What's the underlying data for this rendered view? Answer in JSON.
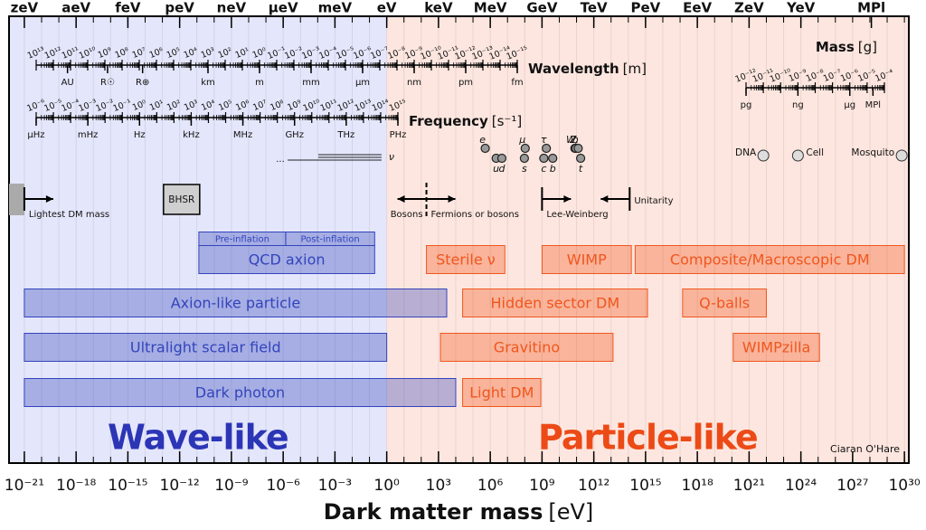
{
  "chart_data": {
    "type": "range",
    "xscale": "log",
    "xlim": [
      1.3e-22,
      1.8e+30
    ],
    "grid": true,
    "xlabel": "Dark matter mass",
    "xlabel_unit": "[eV]",
    "xticks": [
      {
        "value": 1e-21,
        "label": "10⁻²¹"
      },
      {
        "value": 1e-18,
        "label": "10⁻¹⁸"
      },
      {
        "value": 1e-15,
        "label": "10⁻¹⁵"
      },
      {
        "value": 1e-12,
        "label": "10⁻¹²"
      },
      {
        "value": 1e-09,
        "label": "10⁻⁹"
      },
      {
        "value": 1e-06,
        "label": "10⁻⁶"
      },
      {
        "value": 0.001,
        "label": "10⁻³"
      },
      {
        "value": 1,
        "label": "10⁰"
      },
      {
        "value": 1000.0,
        "label": "10³"
      },
      {
        "value": 1000000.0,
        "label": "10⁶"
      },
      {
        "value": 1000000000.0,
        "label": "10⁹"
      },
      {
        "value": 1000000000000.0,
        "label": "10¹²"
      },
      {
        "value": 1000000000000000.0,
        "label": "10¹⁵"
      },
      {
        "value": 1e+18,
        "label": "10¹⁸"
      },
      {
        "value": 1e+21,
        "label": "10²¹"
      },
      {
        "value": 1e+24,
        "label": "10²⁴"
      },
      {
        "value": 1e+27,
        "label": "10²⁷"
      },
      {
        "value": 1e+30,
        "label": "10³⁰"
      }
    ],
    "xticks_minor": [
      1e-21,
      1e-20,
      1e-19,
      1e-18,
      1e-17,
      1e-16,
      1e-15,
      1e-14,
      1e-13,
      1e-12,
      1e-11,
      1e-10,
      1e-09,
      1e-08,
      1e-07,
      1e-06,
      1e-05,
      0.0001,
      0.001,
      0.01,
      0.1,
      1,
      10.0,
      100.0,
      1000.0,
      10000.0,
      100000.0,
      1000000.0,
      10000000.0,
      100000000.0,
      1000000000.0,
      10000000000.0,
      100000000000.0,
      1000000000000.0,
      10000000000000.0,
      100000000000000.0,
      1000000000000000.0,
      1e+16,
      1e+17,
      1e+18,
      1e+19,
      1e+20,
      1e+21,
      1e+22,
      1e+23,
      1e+24,
      1e+25,
      1e+26,
      1e+27,
      1e+28,
      1e+29,
      1e+30
    ],
    "x2ticks": [
      {
        "value": 1e-21,
        "label": "zeV"
      },
      {
        "value": 1e-18,
        "label": "aeV"
      },
      {
        "value": 1e-15,
        "label": "feV"
      },
      {
        "value": 1e-12,
        "label": "peV"
      },
      {
        "value": 1e-09,
        "label": "neV"
      },
      {
        "value": 1e-06,
        "label": "μeV"
      },
      {
        "value": 0.001,
        "label": "meV"
      },
      {
        "value": 1,
        "label": "eV"
      },
      {
        "value": 1000.0,
        "label": "keV"
      },
      {
        "value": 1000000.0,
        "label": "MeV"
      },
      {
        "value": 1000000000.0,
        "label": "GeV"
      },
      {
        "value": 1000000000000.0,
        "label": "TeV"
      },
      {
        "value": 1000000000000000.0,
        "label": "PeV"
      },
      {
        "value": 1e+18,
        "label": "EeV"
      },
      {
        "value": 1e+21,
        "label": "ZeV"
      },
      {
        "value": 1e+24,
        "label": "YeV"
      },
      {
        "value": 1.22e+28,
        "label": "MPl"
      }
    ],
    "divide": 1,
    "regions": [
      {
        "label": "Wave-like",
        "color": "#e4e6fb",
        "text_color": "#2b35b5"
      },
      {
        "label": "Particle-like",
        "color": "#fde6df",
        "text_color": "#ec4a16"
      }
    ],
    "series": [
      {
        "name": "QCD axion",
        "color": "#3344bb",
        "values": [
          1.3e-11,
          0.2
        ],
        "parts": [
          {
            "name": "Pre-inflation",
            "values": [
              1.3e-11,
              1.4e-06
            ]
          },
          {
            "name": "Post-inflation",
            "values": [
              1.4e-06,
              0.2
            ]
          }
        ]
      },
      {
        "name": "Axion-like particle",
        "color": "#3344bb",
        "values": [
          1e-21,
          3000
        ]
      },
      {
        "name": "Ultralight scalar field",
        "color": "#3344bb",
        "values": [
          1e-21,
          1
        ]
      },
      {
        "name": "Dark photon",
        "color": "#3344bb",
        "values": [
          1e-21,
          10000
        ]
      },
      {
        "name": "Sterile ν",
        "color": "#f0561e",
        "values": [
          200,
          7000000
        ]
      },
      {
        "name": "WIMP",
        "color": "#f0561e",
        "values": [
          1000000000.0,
          150000000000000.0
        ]
      },
      {
        "name": "Composite/Macroscopic DM",
        "color": "#f0561e",
        "values": [
          250000000000000.0,
          1e+30
        ]
      },
      {
        "name": "Hidden sector DM",
        "color": "#f0561e",
        "values": [
          25000,
          1300000000000000.0
        ]
      },
      {
        "name": "Q-balls",
        "color": "#f0561e",
        "values": [
          1.4e+17,
          1e+22
        ]
      },
      {
        "name": "Gravitino",
        "color": "#f0561e",
        "values": [
          1300,
          13000000000000.0
        ]
      },
      {
        "name": "WIMPzilla",
        "color": "#f0561e",
        "values": [
          1.2e+20,
          1.2e+25
        ]
      },
      {
        "name": "Light DM",
        "color": "#f0561e",
        "values": [
          25000,
          850000000
        ]
      }
    ],
    "bounds": [
      {
        "value": 1e-21,
        "arrow": "right",
        "label": "Lightest DM mass"
      },
      {
        "value": 200,
        "arrow": "both",
        "label_left": "Bosons",
        "label_right": "Fermions or bosons"
      },
      {
        "value": 1000000000.0,
        "arrow": "right",
        "label": "Lee-Weinberg"
      },
      {
        "value": 120000000000000.0,
        "arrow": "left",
        "label": "Unitarity"
      }
    ],
    "bhsr": {
      "label": "BHSR",
      "value": 1.3e-12
    },
    "particles": [
      {
        "label": "e",
        "mass": 511000,
        "label_pos": "above"
      },
      {
        "label": "u",
        "mass": 2200000,
        "label_pos": "below"
      },
      {
        "label": "d",
        "mass": 4700000,
        "label_pos": "below"
      },
      {
        "label": "μ",
        "mass": 106000000,
        "label_pos": "above"
      },
      {
        "label": "s",
        "mass": 95000000,
        "label_pos": "below"
      },
      {
        "label": "τ",
        "mass": 1780000000,
        "label_pos": "above"
      },
      {
        "label": "c",
        "mass": 1270000000,
        "label_pos": "below"
      },
      {
        "label": "b",
        "mass": 4180000000,
        "label_pos": "below"
      },
      {
        "label": "W,",
        "mass": 80400000000,
        "label_pos": "above"
      },
      {
        "label": "Z",
        "mass": 91200000000,
        "label_pos": "above"
      },
      {
        "label": "h",
        "mass": 125000000000,
        "label_pos": "above"
      },
      {
        "label": "t",
        "mass": 173000000000,
        "label_pos": "below"
      }
    ],
    "neutrino": {
      "label": "ν",
      "mass": 0.5,
      "prefix": "..."
    },
    "wavelength": {
      "title": "Wavelength",
      "unit": "[m]",
      "lim": [
        10000000000000.0,
        1e-15
      ],
      "ticks": [
        {
          "value": 10000000000000.0,
          "label": "10¹³"
        },
        {
          "value": 1000000000000.0,
          "label": "10¹²"
        },
        {
          "value": 100000000000.0,
          "label": "10¹¹"
        },
        {
          "value": 10000000000.0,
          "label": "10¹⁰"
        },
        {
          "value": 1000000000.0,
          "label": "10⁹"
        },
        {
          "value": 100000000.0,
          "label": "10⁸"
        },
        {
          "value": 10000000.0,
          "label": "10⁷"
        },
        {
          "value": 1000000.0,
          "label": "10⁶"
        },
        {
          "value": 100000.0,
          "label": "10⁵"
        },
        {
          "value": 10000.0,
          "label": "10⁴"
        },
        {
          "value": 1000.0,
          "label": "10³"
        },
        {
          "value": 100.0,
          "label": "10²"
        },
        {
          "value": 10.0,
          "label": "10¹"
        },
        {
          "value": 1,
          "label": "10⁰"
        },
        {
          "value": 0.1,
          "label": "10⁻¹"
        },
        {
          "value": 0.01,
          "label": "10⁻²"
        },
        {
          "value": 0.001,
          "label": "10⁻³"
        },
        {
          "value": 0.0001,
          "label": "10⁻⁴"
        },
        {
          "value": 1e-05,
          "label": "10⁻⁵"
        },
        {
          "value": 1e-06,
          "label": "10⁻⁶"
        },
        {
          "value": 1e-07,
          "label": "10⁻⁷"
        },
        {
          "value": 1e-08,
          "label": "10⁻⁸"
        },
        {
          "value": 1e-09,
          "label": "10⁻⁹"
        },
        {
          "value": 1e-10,
          "label": "10⁻¹⁰"
        },
        {
          "value": 1e-11,
          "label": "10⁻¹¹"
        },
        {
          "value": 1e-12,
          "label": "10⁻¹²"
        },
        {
          "value": 1e-13,
          "label": "10⁻¹³"
        },
        {
          "value": 1e-14,
          "label": "10⁻¹⁴"
        },
        {
          "value": 1e-15,
          "label": "10⁻¹⁵"
        }
      ],
      "named": [
        {
          "label": "AU",
          "value": 150000000000.0
        },
        {
          "label": "R☉",
          "value": 700000000.0
        },
        {
          "label": "R⊕",
          "value": 6400000.0
        },
        {
          "label": "km",
          "value": 1000.0
        },
        {
          "label": "m",
          "value": 1
        },
        {
          "label": "mm",
          "value": 0.001
        },
        {
          "label": "μm",
          "value": 1e-06
        },
        {
          "label": "nm",
          "value": 1e-09
        },
        {
          "label": "pm",
          "value": 1e-12
        },
        {
          "label": "fm",
          "value": 1e-15
        }
      ]
    },
    "frequency": {
      "title": "Frequency",
      "unit": "[s⁻¹]",
      "lim": [
        1e-06,
        1000000000000000.0
      ],
      "ticks": [
        {
          "value": 1e-06,
          "label": "10⁻⁶"
        },
        {
          "value": 1e-05,
          "label": "10⁻⁵"
        },
        {
          "value": 0.0001,
          "label": "10⁻⁴"
        },
        {
          "value": 0.001,
          "label": "10⁻³"
        },
        {
          "value": 0.01,
          "label": "10⁻²"
        },
        {
          "value": 0.1,
          "label": "10⁻¹"
        },
        {
          "value": 1,
          "label": "10⁰"
        },
        {
          "value": 10.0,
          "label": "10¹"
        },
        {
          "value": 100.0,
          "label": "10²"
        },
        {
          "value": 1000.0,
          "label": "10³"
        },
        {
          "value": 10000.0,
          "label": "10⁴"
        },
        {
          "value": 100000.0,
          "label": "10⁵"
        },
        {
          "value": 1000000.0,
          "label": "10⁶"
        },
        {
          "value": 10000000.0,
          "label": "10⁷"
        },
        {
          "value": 100000000.0,
          "label": "10⁸"
        },
        {
          "value": 1000000000.0,
          "label": "10⁹"
        },
        {
          "value": 10000000000.0,
          "label": "10¹⁰"
        },
        {
          "value": 100000000000.0,
          "label": "10¹¹"
        },
        {
          "value": 1000000000000.0,
          "label": "10¹²"
        },
        {
          "value": 10000000000000.0,
          "label": "10¹³"
        },
        {
          "value": 100000000000000.0,
          "label": "10¹⁴"
        },
        {
          "value": 1000000000000000.0,
          "label": "10¹⁵"
        }
      ],
      "named": [
        {
          "label": "μHz",
          "value": 1e-06
        },
        {
          "label": "mHz",
          "value": 0.001
        },
        {
          "label": "Hz",
          "value": 1
        },
        {
          "label": "kHz",
          "value": 1000.0
        },
        {
          "label": "MHz",
          "value": 1000000.0
        },
        {
          "label": "GHz",
          "value": 1000000000.0
        },
        {
          "label": "THz",
          "value": 1000000000000.0
        },
        {
          "label": "PHz",
          "value": 1000000000000000.0
        }
      ]
    },
    "mass_axis": {
      "title": "Mass",
      "unit": "[g]",
      "lim": [
        1e-12,
        0.0001
      ],
      "ticks": [
        {
          "value": 1e-12,
          "label": "10⁻¹²"
        },
        {
          "value": 1e-11,
          "label": "10⁻¹¹"
        },
        {
          "value": 1e-10,
          "label": "10⁻¹⁰"
        },
        {
          "value": 1e-09,
          "label": "10⁻⁹"
        },
        {
          "value": 1e-08,
          "label": "10⁻⁸"
        },
        {
          "value": 1e-07,
          "label": "10⁻⁷"
        },
        {
          "value": 1e-06,
          "label": "10⁻⁶"
        },
        {
          "value": 1e-05,
          "label": "10⁻⁵"
        },
        {
          "value": 0.0001,
          "label": "10⁻⁴"
        }
      ],
      "named": [
        {
          "label": "pg",
          "value": 1e-12
        },
        {
          "label": "ng",
          "value": 1e-09
        },
        {
          "label": "μg",
          "value": 1e-06
        },
        {
          "label": "MPl",
          "value": 2.18e-05
        }
      ],
      "objects": [
        {
          "label": "DNA",
          "mass": 1e-11,
          "side": "left"
        },
        {
          "label": "Cell",
          "mass": 1e-09,
          "side": "right"
        },
        {
          "label": "Mosquito",
          "mass": 0.001,
          "side": "left"
        }
      ]
    },
    "credit": "Ciaran O'Hare"
  }
}
